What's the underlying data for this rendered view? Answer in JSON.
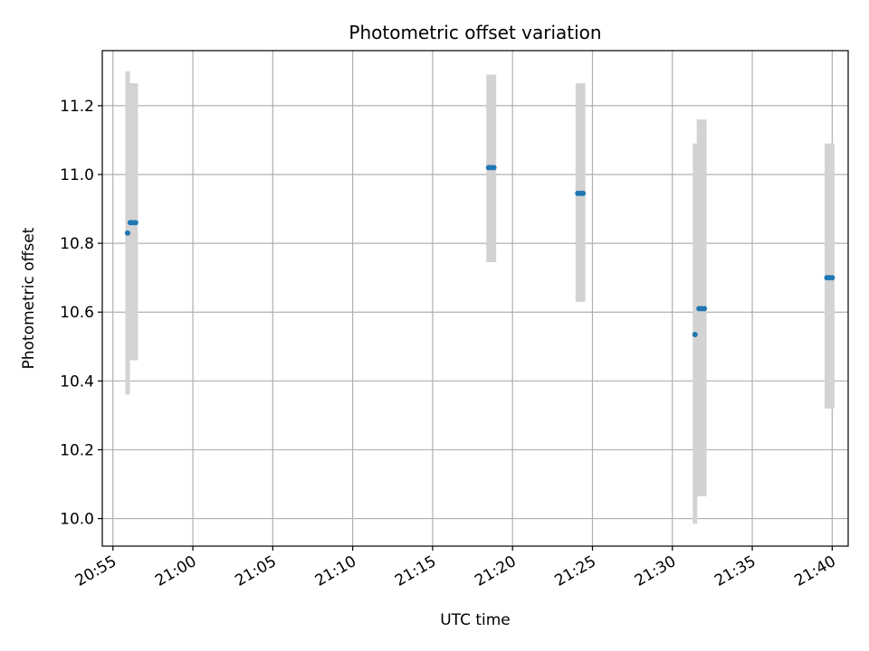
{
  "chart_data": {
    "type": "scatter",
    "title": "Photometric offset variation",
    "xlabel": "UTC time",
    "ylabel": "Photometric offset",
    "x_tick_labels": [
      "20:55",
      "21:00",
      "21:05",
      "21:10",
      "21:15",
      "21:20",
      "21:25",
      "21:30",
      "21:35",
      "21:40"
    ],
    "y_tick_labels": [
      "10.0",
      "10.2",
      "10.4",
      "10.6",
      "10.8",
      "11.0",
      "11.2"
    ],
    "xlim": [
      "20:54:20",
      "21:41:00"
    ],
    "ylim": [
      9.92,
      11.36
    ],
    "grid": true,
    "series": [
      {
        "marker_color": "#1f77b4",
        "errorbar_color": "#d3d3d3",
        "points": [
          {
            "time": "20:55:55",
            "value": 10.83,
            "low": 10.36,
            "high": 11.3
          },
          {
            "time": "20:56:05",
            "value": 10.86,
            "low": 10.46,
            "high": 11.265
          },
          {
            "time": "20:56:15",
            "value": 10.86,
            "low": 10.46,
            "high": 11.265
          },
          {
            "time": "20:56:25",
            "value": 10.86,
            "low": 10.46,
            "high": 11.265
          },
          {
            "time": "21:18:30",
            "value": 11.02,
            "low": 10.745,
            "high": 11.29
          },
          {
            "time": "21:18:40",
            "value": 11.02,
            "low": 10.745,
            "high": 11.29
          },
          {
            "time": "21:18:50",
            "value": 11.02,
            "low": 10.745,
            "high": 11.29
          },
          {
            "time": "21:24:05",
            "value": 10.945,
            "low": 10.63,
            "high": 11.265
          },
          {
            "time": "21:24:15",
            "value": 10.945,
            "low": 10.63,
            "high": 11.265
          },
          {
            "time": "21:24:25",
            "value": 10.945,
            "low": 10.63,
            "high": 11.265
          },
          {
            "time": "21:31:25",
            "value": 10.535,
            "low": 9.985,
            "high": 11.09
          },
          {
            "time": "21:31:40",
            "value": 10.61,
            "low": 10.065,
            "high": 11.16
          },
          {
            "time": "21:31:50",
            "value": 10.61,
            "low": 10.065,
            "high": 11.16
          },
          {
            "time": "21:32:00",
            "value": 10.61,
            "low": 10.065,
            "high": 11.16
          },
          {
            "time": "21:39:40",
            "value": 10.7,
            "low": 10.32,
            "high": 11.09
          },
          {
            "time": "21:39:50",
            "value": 10.7,
            "low": 10.32,
            "high": 11.09
          },
          {
            "time": "21:40:00",
            "value": 10.7,
            "low": 10.32,
            "high": 11.09
          }
        ]
      }
    ]
  }
}
